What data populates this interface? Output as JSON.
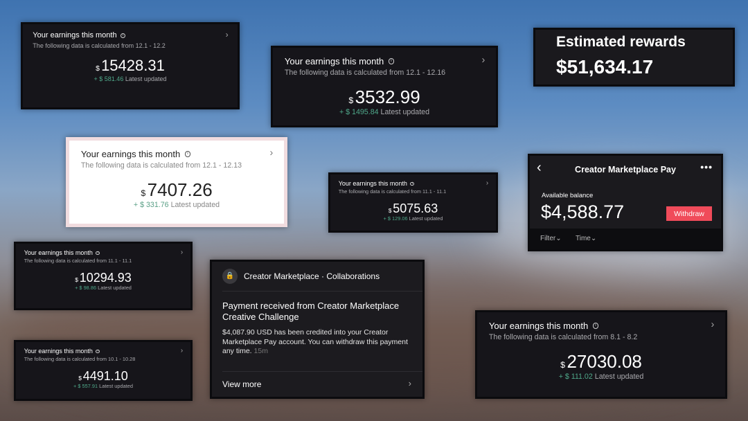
{
  "earnings_cards": [
    {
      "title": "Your earnings this month",
      "subtitle": "The following data is calculated from 12.1 - 12.2",
      "currency": "$",
      "amount": "15428.31",
      "delta": "+ $ 581.46",
      "delta_label": "Latest updated"
    },
    {
      "title": "Your earnings this month",
      "subtitle": "The following data is calculated from 12.1 - 12.16",
      "currency": "$",
      "amount": "3532.99",
      "delta": "+ $ 1495.84",
      "delta_label": "Latest updated"
    },
    {
      "title": "Your earnings this month",
      "subtitle": "The following data is calculated from 12.1 - 12.13",
      "currency": "$",
      "amount": "7407.26",
      "delta": "+ $ 331.76",
      "delta_label": "Latest updated"
    },
    {
      "title": "Your earnings this month",
      "subtitle": "The following data is calculated from 11.1 - 11.1",
      "currency": "$",
      "amount": "5075.63",
      "delta": "+ $ 129.06",
      "delta_label": "Latest updated"
    },
    {
      "title": "Your earnings this month",
      "subtitle": "The following data is calculated from 11.1 - 11.1",
      "currency": "$",
      "amount": "10294.93",
      "delta": "+ $ 98.86",
      "delta_label": "Latest updated"
    },
    {
      "title": "Your earnings this month",
      "subtitle": "The following data is calculated from 10.1 - 10.28",
      "currency": "$",
      "amount": "4491.10",
      "delta": "+ $ 557.91",
      "delta_label": "Latest updated"
    },
    {
      "title": "Your earnings this month",
      "subtitle": "The following data is calculated from 8.1 - 8.2",
      "currency": "$",
      "amount": "27030.08",
      "delta": "+ $ 111.02",
      "delta_label": "Latest updated"
    }
  ],
  "estimated": {
    "title": "Estimated rewards",
    "value": "$51,634.17"
  },
  "pay": {
    "back_icon": "chevron-left",
    "title": "Creator Marketplace Pay",
    "more_icon": "ellipsis",
    "balance_label": "Available balance",
    "balance": "$4,588.77",
    "withdraw": "Withdraw",
    "filter": "Filter⌄",
    "time": "Time⌄",
    "accent": "#f04b5a"
  },
  "notification": {
    "icon": "lock",
    "source": "Creator Marketplace · Collaborations",
    "heading": "Payment received from Creator Marketplace Creative Challenge",
    "body": "$4,087.90 USD has been credited into your Creator Marketplace Pay account. You can withdraw this payment any time.",
    "time": "15m",
    "view_more": "View more"
  },
  "colors": {
    "positive": "#4fa88a",
    "card_bg": "#16151a"
  }
}
